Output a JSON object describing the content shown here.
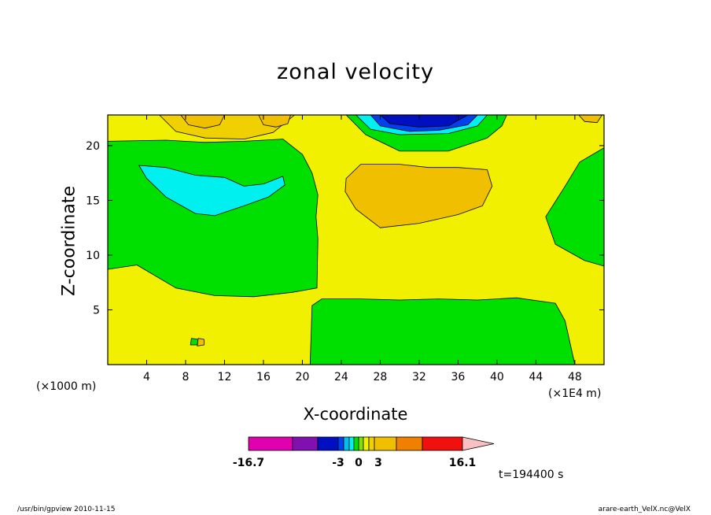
{
  "chart_data": {
    "type": "heatmap",
    "title": "zonal velocity",
    "xlabel": "X-coordinate",
    "ylabel": "Z-coordinate",
    "x_unit_left": "(×1000 m)",
    "x_unit_right": "(×1E4 m)",
    "xlim": [
      0,
      51
    ],
    "ylim": [
      0,
      22.8
    ],
    "x_ticks": [
      4,
      8,
      12,
      16,
      20,
      24,
      28,
      32,
      36,
      40,
      44,
      48
    ],
    "y_ticks": [
      5,
      10,
      15,
      20
    ],
    "time_label": "t=194400 s",
    "colorbar": {
      "min_label": "-16.7",
      "max_label": "16.1",
      "tick_labels": [
        "-3",
        "0",
        "3"
      ],
      "levels": [
        -16.7,
        -12,
        -8,
        -4,
        -3,
        -2,
        -1,
        0,
        1,
        2,
        3,
        4,
        8,
        12,
        16.1
      ],
      "colors": [
        "#e000b0",
        "#8010b0",
        "#0010c0",
        "#0040f0",
        "#00c0f0",
        "#00f0f0",
        "#00e000",
        "#80e000",
        "#f0f000",
        "#f0d000",
        "#f0c000",
        "#f08000",
        "#f01010",
        "#f08080",
        "#f8c0c0"
      ]
    },
    "background_color": "#f0f000",
    "regions": [
      {
        "name": "lower-left-negative",
        "fill": "#00e000",
        "points": [
          [
            0,
            8.7
          ],
          [
            3,
            9.1
          ],
          [
            7,
            7.0
          ],
          [
            11,
            6.3
          ],
          [
            15,
            6.2
          ],
          [
            19,
            6.6
          ],
          [
            21.5,
            7.0
          ],
          [
            21.6,
            11.5
          ],
          [
            21.4,
            13.5
          ],
          [
            21.6,
            15.5
          ],
          [
            21.0,
            17.5
          ],
          [
            20.0,
            19.2
          ],
          [
            18,
            20.6
          ],
          [
            14,
            20.4
          ],
          [
            10,
            20.3
          ],
          [
            6,
            20.5
          ],
          [
            0,
            20.4
          ]
        ]
      },
      {
        "name": "upper-left-cyan",
        "fill": "#00f0f0",
        "points": [
          [
            3.2,
            18.2
          ],
          [
            6,
            18.0
          ],
          [
            9,
            17.3
          ],
          [
            12,
            17.1
          ],
          [
            14,
            16.3
          ],
          [
            16,
            16.5
          ],
          [
            18,
            17.2
          ],
          [
            18.2,
            16.4
          ],
          [
            16.5,
            15.3
          ],
          [
            14,
            14.5
          ],
          [
            11,
            13.6
          ],
          [
            9,
            13.8
          ],
          [
            6,
            15.3
          ],
          [
            4,
            17.0
          ]
        ]
      },
      {
        "name": "bottom-center-negative",
        "fill": "#00e000",
        "points": [
          [
            20.8,
            0
          ],
          [
            21.0,
            5.4
          ],
          [
            22,
            6.0
          ],
          [
            26,
            6.0
          ],
          [
            30,
            5.9
          ],
          [
            34,
            6.0
          ],
          [
            38,
            5.9
          ],
          [
            42,
            6.1
          ],
          [
            46,
            5.6
          ],
          [
            47,
            4.0
          ],
          [
            48,
            0
          ]
        ]
      },
      {
        "name": "upper-center-orange",
        "fill": "#f0c000",
        "points": [
          [
            24.5,
            17.0
          ],
          [
            26,
            18.3
          ],
          [
            30,
            18.3
          ],
          [
            33,
            18.0
          ],
          [
            36,
            18.0
          ],
          [
            39,
            17.8
          ],
          [
            39.5,
            16.3
          ],
          [
            38.5,
            14.5
          ],
          [
            36,
            13.7
          ],
          [
            32,
            12.9
          ],
          [
            28,
            12.5
          ],
          [
            25.5,
            14.2
          ],
          [
            24.4,
            15.8
          ]
        ]
      },
      {
        "name": "right-edge-negative",
        "fill": "#00e000",
        "points": [
          [
            51,
            19.8
          ],
          [
            48.5,
            18.5
          ],
          [
            47,
            16.3
          ],
          [
            45,
            13.5
          ],
          [
            46,
            11.0
          ],
          [
            49,
            9.5
          ],
          [
            51,
            9.0
          ]
        ]
      },
      {
        "name": "top-center-negative",
        "fill": "#00e000",
        "points": [
          [
            24.5,
            22.8
          ],
          [
            26.5,
            21.0
          ],
          [
            30,
            19.5
          ],
          [
            35,
            19.5
          ],
          [
            39,
            20.7
          ],
          [
            40.5,
            21.8
          ],
          [
            41,
            22.8
          ]
        ]
      },
      {
        "name": "top-center-cyan",
        "fill": "#00f0f0",
        "points": [
          [
            25.5,
            22.8
          ],
          [
            27,
            21.5
          ],
          [
            30,
            21.0
          ],
          [
            35,
            21.1
          ],
          [
            38,
            21.8
          ],
          [
            39,
            22.8
          ]
        ]
      },
      {
        "name": "top-center-blue",
        "fill": "#0040f0",
        "points": [
          [
            27,
            22.8
          ],
          [
            28,
            21.8
          ],
          [
            31,
            21.3
          ],
          [
            34,
            21.4
          ],
          [
            37,
            21.9
          ],
          [
            38,
            22.8
          ]
        ]
      },
      {
        "name": "top-center-darkblue",
        "fill": "#0010c0",
        "points": [
          [
            28,
            22.8
          ],
          [
            29,
            22.0
          ],
          [
            32,
            21.7
          ],
          [
            35,
            21.8
          ],
          [
            37,
            22.8
          ]
        ]
      },
      {
        "name": "top-left-lightorange",
        "fill": "#f0d000",
        "points": [
          [
            5.3,
            22.8
          ],
          [
            7,
            21.3
          ],
          [
            10,
            20.7
          ],
          [
            14,
            20.6
          ],
          [
            17,
            21.2
          ],
          [
            19.2,
            22.8
          ]
        ]
      },
      {
        "name": "top-left-orange-a",
        "fill": "#f0c000",
        "points": [
          [
            7.5,
            22.8
          ],
          [
            8.3,
            21.9
          ],
          [
            10,
            21.6
          ],
          [
            11.5,
            21.9
          ],
          [
            12,
            22.8
          ]
        ]
      },
      {
        "name": "top-left-orange-b",
        "fill": "#f0c000",
        "points": [
          [
            15.5,
            22.8
          ],
          [
            16,
            21.9
          ],
          [
            17.3,
            21.7
          ],
          [
            18.5,
            22.0
          ],
          [
            18.8,
            22.8
          ]
        ]
      },
      {
        "name": "top-right-orange",
        "fill": "#f0c000",
        "points": [
          [
            48.4,
            22.8
          ],
          [
            49,
            22.2
          ],
          [
            50.3,
            22.1
          ],
          [
            50.8,
            22.8
          ]
        ]
      },
      {
        "name": "small-spot-green",
        "fill": "#00e000",
        "points": [
          [
            8.5,
            1.8
          ],
          [
            9.2,
            1.8
          ],
          [
            9.3,
            2.3
          ],
          [
            8.6,
            2.4
          ]
        ]
      },
      {
        "name": "small-spot-orange",
        "fill": "#f0c000",
        "points": [
          [
            9.2,
            1.7
          ],
          [
            9.9,
            1.8
          ],
          [
            9.9,
            2.3
          ],
          [
            9.3,
            2.4
          ]
        ]
      }
    ]
  },
  "footer": {
    "left": "/usr/bin/gpview   2010-11-15",
    "right": "arare-earth_VelX.nc@VelX"
  }
}
